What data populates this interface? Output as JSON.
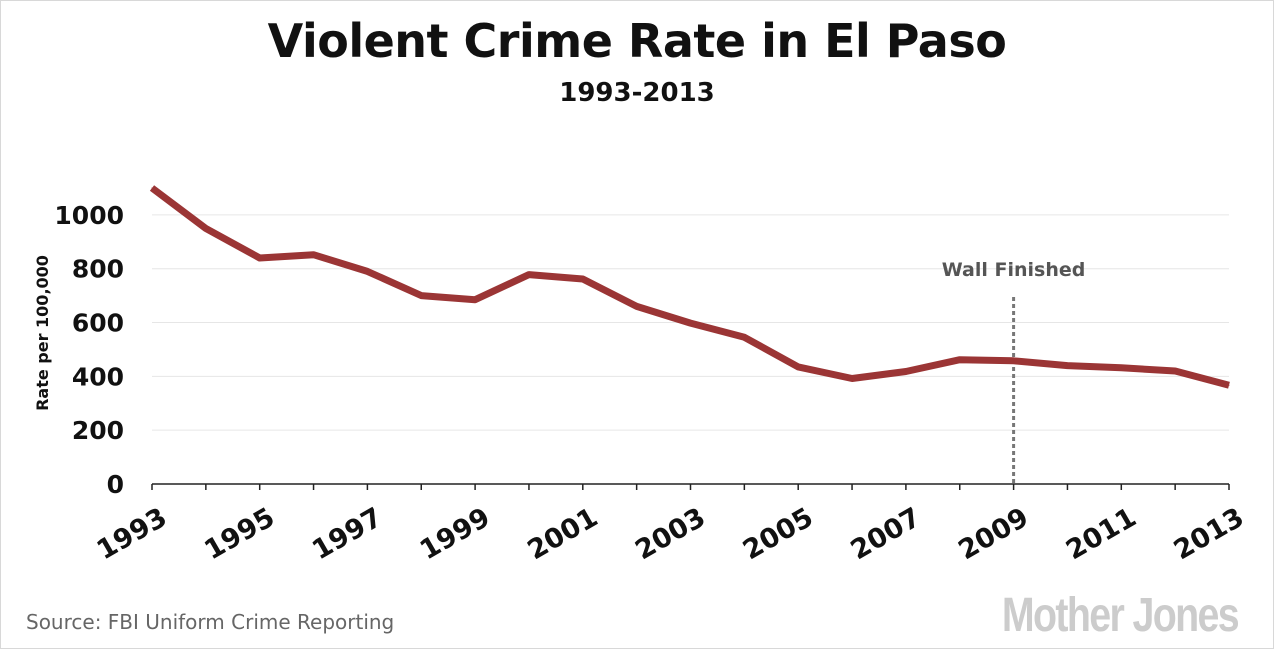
{
  "chart_data": {
    "type": "line",
    "title": "Violent Crime Rate in El Paso",
    "subtitle": "1993-2013",
    "ylabel": "Rate per 100,000",
    "xlabel": "",
    "x": [
      1993,
      1994,
      1995,
      1996,
      1997,
      1998,
      1999,
      2000,
      2001,
      2002,
      2003,
      2004,
      2005,
      2006,
      2007,
      2008,
      2009,
      2010,
      2011,
      2012,
      2013
    ],
    "values": [
      1100,
      950,
      840,
      852,
      790,
      700,
      685,
      778,
      762,
      660,
      598,
      545,
      435,
      392,
      418,
      462,
      458,
      440,
      432,
      420,
      367
    ],
    "xticks": [
      "1993",
      "1995",
      "1997",
      "1999",
      "2001",
      "2003",
      "2005",
      "2007",
      "2009",
      "2011",
      "2013"
    ],
    "yticks": [
      "0",
      "200",
      "400",
      "600",
      "800",
      "1000"
    ],
    "ylim": [
      0,
      1100
    ],
    "xlim": [
      1993,
      2013
    ],
    "grid": true,
    "line_color": "#9b3535",
    "annotation": {
      "label": "Wall Finished",
      "x": 2009
    }
  },
  "source": "Source: FBI Uniform Crime Reporting",
  "brand": "Mother Jones"
}
